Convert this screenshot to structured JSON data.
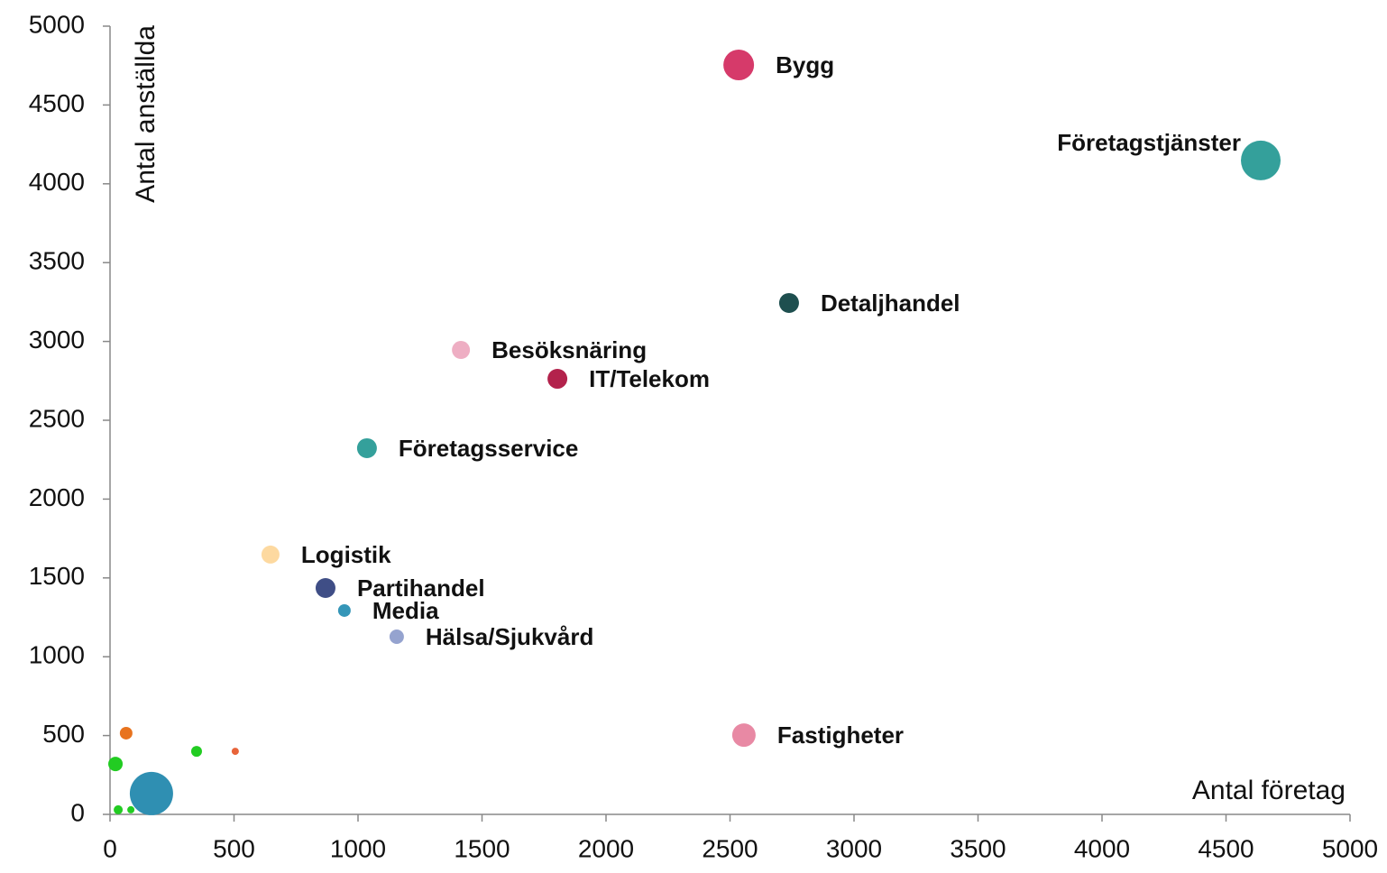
{
  "chart_data": {
    "type": "bubble",
    "x_label": "Antal företag",
    "y_label": "Antal anställda",
    "xlim": [
      0,
      5000
    ],
    "xticks": [
      0,
      500,
      1000,
      1500,
      2000,
      2500,
      3000,
      3500,
      4000,
      4500,
      5000
    ],
    "ylim": [
      0,
      5000
    ],
    "yticks": [
      0,
      500,
      1000,
      1500,
      2000,
      2500,
      3000,
      3500,
      4000,
      4500,
      5000
    ],
    "labels": [
      "Bygg",
      "Företagstjänster",
      "Detaljhandel",
      "Besöksnäring",
      "IT/Telekom",
      "Företagsservice",
      "Logistik",
      "Partihandel",
      "Media",
      "Hälsa/Sjukvård",
      "Fastigheter",
      null,
      null,
      null,
      null,
      null,
      null,
      null
    ],
    "x": [
      2535,
      4640,
      2738,
      1415,
      1804,
      1036,
      647,
      869,
      945,
      1156,
      2556,
      65,
      349,
      505,
      22,
      167,
      33,
      84
    ],
    "values": [
      4754,
      4148,
      3244,
      2946,
      2763,
      2323,
      1648,
      1436,
      1293,
      1127,
      503,
      515,
      400,
      400,
      320,
      132,
      29,
      29
    ],
    "sizes": [
      17,
      22,
      11,
      10,
      11,
      11,
      10,
      11,
      7,
      8,
      13,
      7,
      6,
      4,
      8,
      24,
      5,
      4
    ],
    "colors": [
      "#d63a6a",
      "#34a09b",
      "#1e4f4f",
      "#eeaec3",
      "#b3224c",
      "#34a09b",
      "#fdd9a0",
      "#3f4e86",
      "#3596b8",
      "#95a3cf",
      "#e889a4",
      "#e8731e",
      "#22cc22",
      "#e8643a",
      "#22cc22",
      "#2f8fb2",
      "#22cc22",
      "#22cc22"
    ]
  }
}
